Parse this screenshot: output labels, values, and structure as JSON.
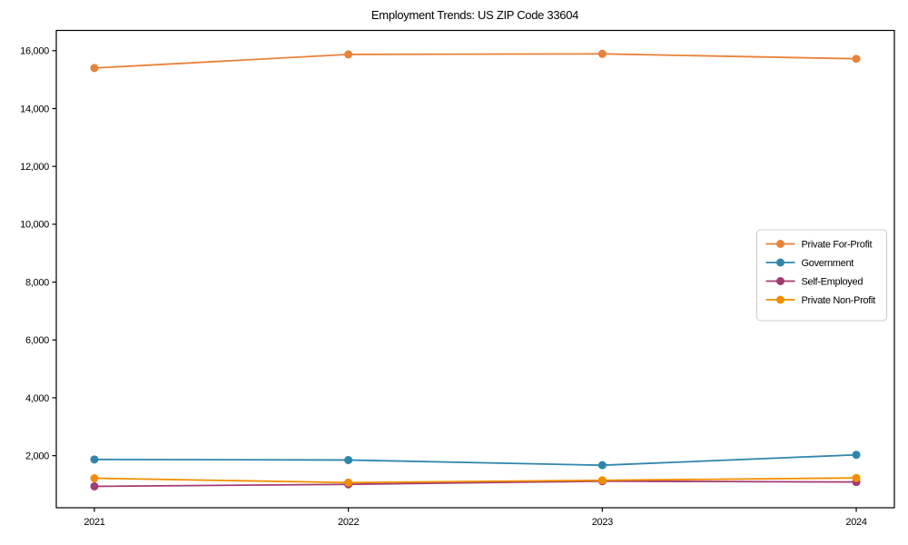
{
  "title": "Employment Trends: US ZIP Code 33604",
  "chart_data": {
    "type": "line",
    "title": "Employment Trends: US ZIP Code 33604",
    "xlabel": "",
    "ylabel": "",
    "x": [
      2021,
      2022,
      2023,
      2024
    ],
    "series": [
      {
        "name": "Private For-Profit",
        "color": "#E8833A",
        "values": [
          15400,
          15870,
          15890,
          15720
        ]
      },
      {
        "name": "Government",
        "color": "#2E86AB",
        "values": [
          1870,
          1850,
          1670,
          2030
        ]
      },
      {
        "name": "Self-Employed",
        "color": "#A23B72",
        "values": [
          940,
          1010,
          1120,
          1090
        ]
      },
      {
        "name": "Private Non-Profit",
        "color": "#F18F01",
        "values": [
          1220,
          1070,
          1150,
          1230
        ]
      }
    ],
    "xlim": [
      2020.85,
      2024.15
    ],
    "ylim": [
      200,
      16700
    ],
    "yticks": [
      2000,
      4000,
      6000,
      8000,
      10000,
      12000,
      14000,
      16000
    ],
    "ytick_format": "comma",
    "grid": false,
    "legend_position": "center-right",
    "axis_color": "#000000",
    "background": "#ffffff",
    "marker": "circle",
    "marker_radius": 4.5,
    "line_width": 1.8
  }
}
